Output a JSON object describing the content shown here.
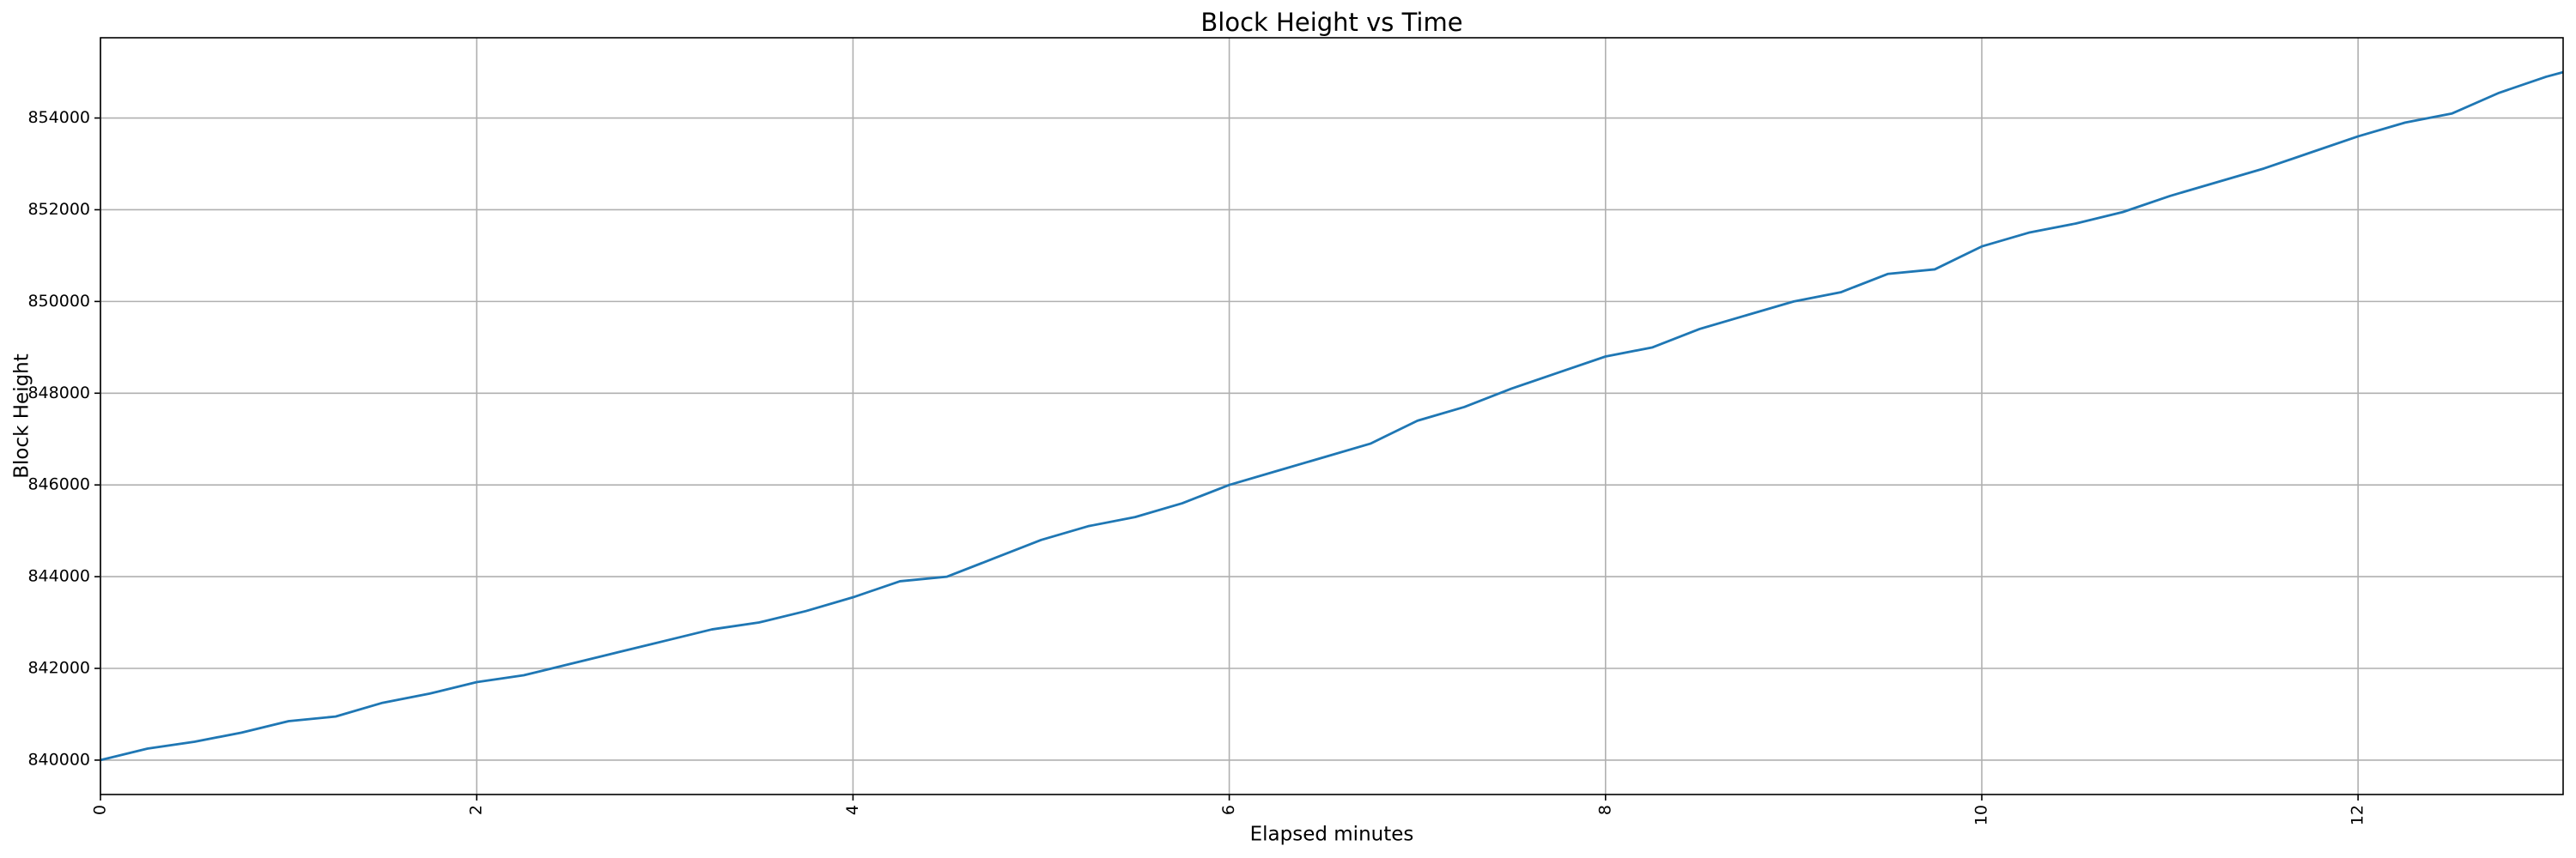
{
  "chart_data": {
    "type": "line",
    "title": "Block Height vs Time",
    "x_label": "Elapsed minutes",
    "y_label": "Block Height",
    "x": [
      0,
      0.25,
      0.5,
      0.75,
      1,
      1.25,
      1.5,
      1.75,
      2,
      2.25,
      2.5,
      2.75,
      3,
      3.25,
      3.5,
      3.75,
      4,
      4.25,
      4.5,
      4.75,
      5,
      5.25,
      5.5,
      5.75,
      6,
      6.25,
      6.5,
      6.75,
      7,
      7.25,
      7.5,
      7.75,
      8,
      8.25,
      8.5,
      8.75,
      9,
      9.25,
      9.5,
      9.75,
      10,
      10.25,
      10.5,
      10.75,
      11,
      11.25,
      11.5,
      11.75,
      12,
      12.25,
      12.5,
      12.75,
      13,
      13.09
    ],
    "series": [
      {
        "name": "Block Height",
        "color": "#1f77b4",
        "values": [
          840000,
          840250,
          840400,
          840600,
          840850,
          840950,
          841250,
          841450,
          841700,
          841850,
          842100,
          842350,
          842600,
          842850,
          843000,
          843250,
          843550,
          843900,
          844000,
          844400,
          844800,
          845100,
          845300,
          845600,
          846000,
          846300,
          846600,
          846900,
          847400,
          847700,
          848100,
          848450,
          848800,
          849000,
          849400,
          849700,
          850000,
          850200,
          850600,
          850700,
          851200,
          851500,
          851700,
          851950,
          852300,
          852600,
          852900,
          853250,
          853600,
          853900,
          854100,
          854550,
          854900,
          855000
        ]
      }
    ],
    "xlim": [
      0,
      13.09
    ],
    "ylim": [
      839250,
      855750
    ],
    "xticks": [
      0,
      2,
      4,
      6,
      8,
      10,
      12
    ],
    "yticks": [
      840000,
      842000,
      844000,
      846000,
      848000,
      850000,
      852000,
      854000
    ],
    "grid": true
  }
}
